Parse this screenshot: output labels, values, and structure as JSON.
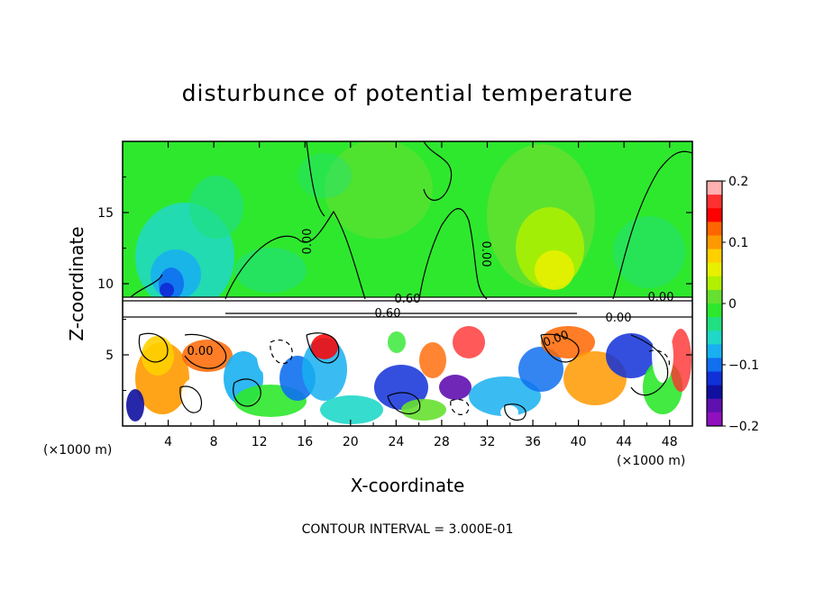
{
  "chart_data": {
    "type": "heatmap",
    "title": "disturbunce of potential temperature",
    "xlabel": "X-coordinate",
    "ylabel": "Z-coordinate",
    "x_unit_left": "(×1000 m)",
    "x_unit_right": "(×1000 m)",
    "xlim": [
      0,
      50
    ],
    "ylim": [
      0,
      20
    ],
    "x_ticks": [
      "4",
      "8",
      "12",
      "16",
      "20",
      "24",
      "28",
      "32",
      "36",
      "40",
      "44",
      "48"
    ],
    "x_tick_values": [
      4,
      8,
      12,
      16,
      20,
      24,
      28,
      32,
      36,
      40,
      44,
      48
    ],
    "y_ticks": [
      "5",
      "10",
      "15"
    ],
    "y_tick_values": [
      5,
      10,
      15
    ],
    "colorbar": {
      "range": [
        -0.2,
        0.2
      ],
      "ticks": [
        "0.2",
        "0.1",
        "0",
        "−0.1",
        "−0.2"
      ],
      "tick_values": [
        0.2,
        0.1,
        0,
        -0.1,
        -0.2
      ],
      "colors": [
        "#ffb0b0",
        "#ff3030",
        "#ff0000",
        "#ff6600",
        "#ff9900",
        "#ffd000",
        "#e8f000",
        "#b0f000",
        "#66e030",
        "#2ee82e",
        "#20e080",
        "#20d8c8",
        "#18b0f0",
        "#1070f0",
        "#1030d8",
        "#1010a0",
        "#6010b0",
        "#9010c0"
      ]
    },
    "contour_labels": [
      "0.00",
      "0.00",
      "0.00",
      "0.60",
      "0.60",
      "0.00",
      "0.00",
      "0.00"
    ],
    "footer": "CONTOUR INTERVAL = 3.000E-01"
  }
}
